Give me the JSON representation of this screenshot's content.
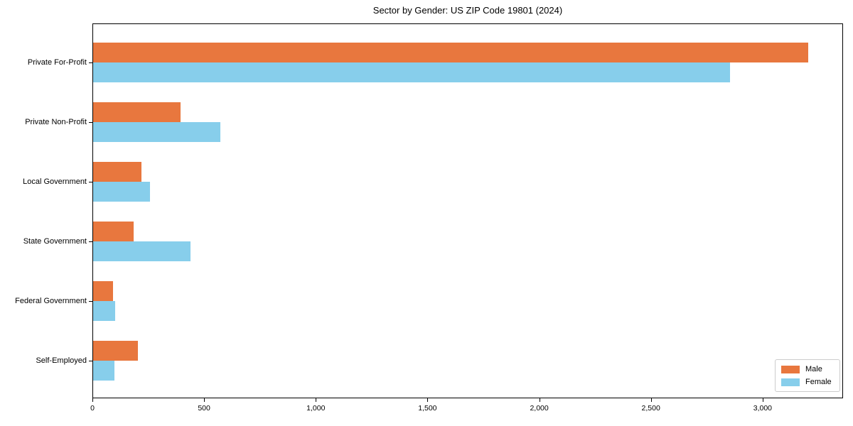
{
  "title": "Sector by Gender: US ZIP Code 19801 (2024)",
  "chart_data": {
    "type": "bar",
    "orientation": "horizontal",
    "title": "Sector by Gender: US ZIP Code 19801 (2024)",
    "xlabel": "",
    "ylabel": "",
    "categories": [
      "Private For-Profit",
      "Private Non-Profit",
      "Local Government",
      "State Government",
      "Federal Government",
      "Self-Employed"
    ],
    "series": [
      {
        "name": "Male",
        "color": "#e8773e",
        "values": [
          3200,
          390,
          215,
          180,
          90,
          200
        ]
      },
      {
        "name": "Female",
        "color": "#87ceeb",
        "values": [
          2850,
          570,
          255,
          435,
          100,
          95
        ]
      }
    ],
    "xlim": [
      0,
      3360
    ],
    "xticks": [
      0,
      500,
      1000,
      1500,
      2000,
      2500,
      3000
    ],
    "xtick_labels": [
      "0",
      "500",
      "1,000",
      "1,500",
      "2,000",
      "2,500",
      "3,000"
    ],
    "grid": false,
    "legend_position": "lower right"
  },
  "legend": {
    "items": [
      {
        "label": "Male",
        "color": "#e8773e"
      },
      {
        "label": "Female",
        "color": "#87ceeb"
      }
    ]
  }
}
